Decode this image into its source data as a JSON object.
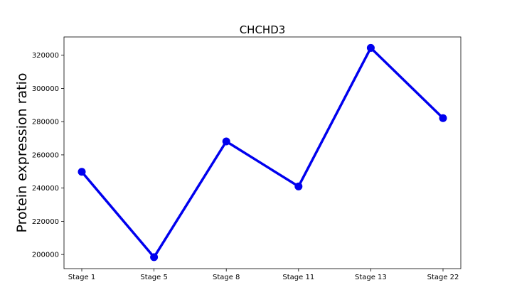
{
  "chart_data": {
    "type": "line",
    "title": "CHCHD3",
    "xlabel": "",
    "ylabel": "Protein expression ratio",
    "categories": [
      "Stage 1",
      "Stage 5",
      "Stage 8",
      "Stage 11",
      "Stage 13",
      "Stage 22"
    ],
    "series": [
      {
        "values": [
          249800,
          198400,
          268100,
          241000,
          324400,
          282100
        ],
        "color": "#0000ee"
      }
    ],
    "ylim": [
      191500,
      331000
    ],
    "yticks": [
      200000,
      220000,
      240000,
      260000,
      280000,
      300000,
      320000
    ],
    "grid": false,
    "legend": "none"
  }
}
